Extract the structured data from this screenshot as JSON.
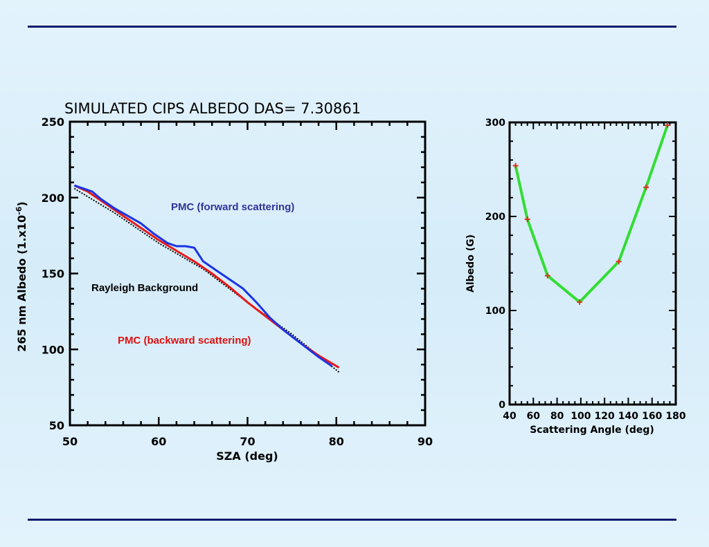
{
  "colors": {
    "rule": "#0a1a6e",
    "forward": "#1a33e6",
    "backward": "#e61a1a",
    "rayleigh": "#000000",
    "fit": "#33dd33",
    "fit_marker": "#e03020",
    "annot_forward": "#333399",
    "annot_rayleigh": "#000000",
    "annot_backward": "#dd1111"
  },
  "chart_data": [
    {
      "type": "line",
      "title": "SIMULATED CIPS ALBEDO DAS= 7.30861",
      "xlabel": "SZA (deg)",
      "ylabel": "265 nm Albedo (1.x10",
      "ylabel_sup": "-6",
      "ylabel_close": ")",
      "xlim": [
        50,
        90
      ],
      "ylim": [
        50,
        250
      ],
      "xticks": [
        50,
        60,
        70,
        80,
        90
      ],
      "yticks": [
        50,
        100,
        150,
        200,
        250
      ],
      "grid": false,
      "annotations": [
        "PMC (forward scattering)",
        "Rayleigh Background",
        "PMC (backward scattering)"
      ],
      "series": [
        {
          "name": "PMC (forward scattering)",
          "x": [
            50.5,
            51.5,
            52.5,
            53.5,
            55,
            56.5,
            58,
            59.5,
            61,
            62,
            63,
            64,
            65,
            66.5,
            68,
            69.5,
            71,
            72.5,
            74,
            76,
            78,
            79.5
          ],
          "y": [
            208,
            206,
            204,
            199,
            193,
            188,
            183,
            176,
            170,
            168,
            168,
            167,
            158,
            152,
            146,
            140,
            131,
            121,
            113,
            104,
            95,
            89
          ]
        },
        {
          "name": "PMC (backward scattering)",
          "x": [
            50.5,
            52,
            54,
            56,
            58,
            60,
            62,
            64,
            66,
            68,
            70,
            72,
            74,
            76,
            78,
            80.3
          ],
          "y": [
            208,
            204,
            196,
            188,
            180,
            172,
            165,
            158,
            150,
            141,
            131,
            122,
            113,
            104,
            96,
            88
          ]
        },
        {
          "name": "Rayleigh Background",
          "x": [
            50.5,
            55,
            60,
            65,
            70,
            75,
            80.3
          ],
          "y": [
            206,
            190,
            170,
            153,
            131,
            110,
            85
          ]
        }
      ]
    },
    {
      "type": "line",
      "title": "",
      "xlabel": "Scattering Angle (deg)",
      "ylabel": "Albedo (G)",
      "xlim": [
        40,
        180
      ],
      "ylim": [
        0,
        300
      ],
      "xticks": [
        40,
        60,
        80,
        100,
        120,
        140,
        160,
        180
      ],
      "yticks": [
        0,
        100,
        200,
        300
      ],
      "grid": false,
      "series": [
        {
          "x": [
            45,
            55,
            72,
            99,
            132,
            155,
            173
          ],
          "y": [
            254,
            197,
            137,
            109,
            152,
            231,
            297
          ]
        }
      ]
    }
  ]
}
